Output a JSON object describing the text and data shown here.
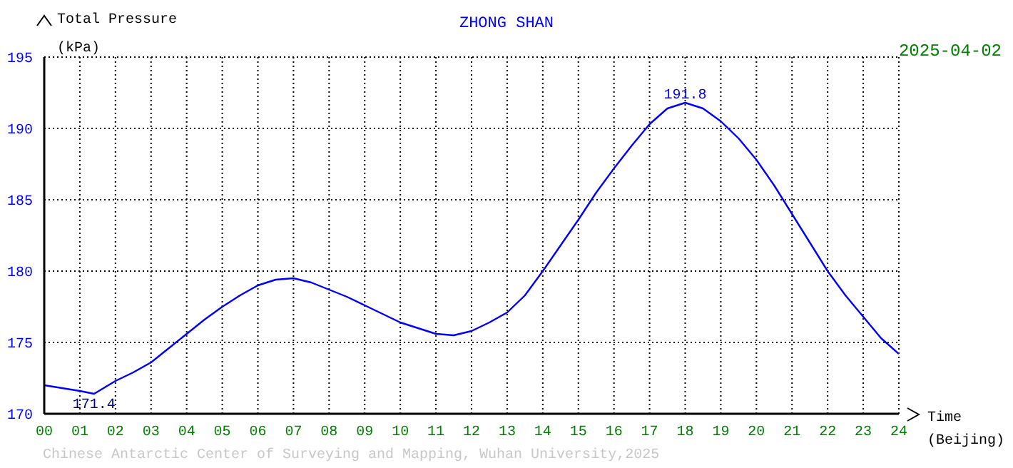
{
  "chart_data": {
    "type": "line",
    "title": "ZHONG SHAN",
    "ylabel": "Total Pressure (kPa)",
    "xlabel": "Time (Beijing)",
    "x": [
      0,
      0.5,
      1,
      1.4,
      2,
      2.5,
      3,
      3.5,
      4,
      4.5,
      5,
      5.5,
      6,
      6.5,
      7,
      7.5,
      8,
      8.5,
      9,
      9.5,
      10,
      10.5,
      11,
      11.5,
      12,
      12.5,
      13,
      13.5,
      14,
      14.5,
      15,
      15.5,
      16,
      16.5,
      17,
      17.5,
      18,
      18.5,
      19,
      19.5,
      20,
      20.5,
      21,
      21.5,
      22,
      22.5,
      23,
      23.5,
      24
    ],
    "series": [
      {
        "color": "#0000ff",
        "values": [
          172.0,
          171.8,
          171.6,
          171.4,
          172.3,
          172.9,
          173.6,
          174.6,
          175.6,
          176.6,
          177.5,
          178.3,
          179.0,
          179.4,
          179.5,
          179.2,
          178.7,
          178.2,
          177.6,
          177.0,
          176.4,
          176.0,
          175.6,
          175.5,
          175.8,
          176.4,
          177.1,
          178.3,
          180.0,
          181.8,
          183.6,
          185.5,
          187.2,
          188.8,
          190.3,
          191.4,
          191.8,
          191.4,
          190.5,
          189.3,
          187.8,
          186.0,
          184.0,
          182.0,
          180.0,
          178.3,
          176.8,
          175.3,
          174.2
        ]
      }
    ],
    "xlim": [
      0,
      24
    ],
    "xticks": [
      {
        "value": 0,
        "label": "00"
      },
      {
        "value": 1,
        "label": "01"
      },
      {
        "value": 2,
        "label": "02"
      },
      {
        "value": 3,
        "label": "03"
      },
      {
        "value": 4,
        "label": "04"
      },
      {
        "value": 5,
        "label": "05"
      },
      {
        "value": 6,
        "label": "06"
      },
      {
        "value": 7,
        "label": "07"
      },
      {
        "value": 8,
        "label": "08"
      },
      {
        "value": 9,
        "label": "09"
      },
      10,
      11,
      12,
      13,
      14,
      15,
      16,
      17,
      18,
      19,
      20,
      21,
      22,
      23,
      24
    ],
    "ylim": [
      170,
      195
    ],
    "yticks": [
      170,
      175,
      180,
      185,
      190,
      195
    ],
    "grid": true,
    "marker": "none",
    "line_style": "solid",
    "annotations": [
      {
        "text": "171.4",
        "x": 1.4,
        "y": 171.4
      },
      {
        "text": "191.8",
        "x": 18,
        "y": 191.8
      },
      "2025-04-02",
      "Chinese Antarctic Center of Surveying and Mapping, Wuhan University,2025"
    ]
  }
}
